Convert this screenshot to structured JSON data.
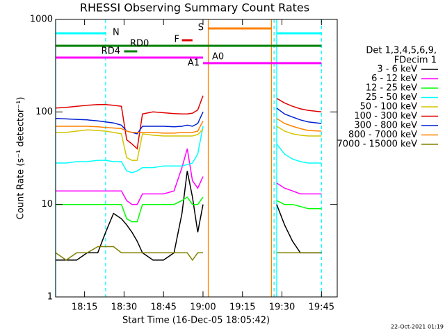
{
  "chart_data": {
    "type": "line",
    "title": "RHESSI Observing Summary Count Rates",
    "x_label": "Start Time (16-Dec-05 18:05:42)",
    "y_label": "Count Rate (s⁻¹ detector⁻¹)",
    "footer": "22-Oct-2021 01:19",
    "legend_title": [
      "Det 1,3,4,5,6,9,",
      "FDecim 1"
    ],
    "log_y": true,
    "xlim": [
      "18:04",
      "19:51"
    ],
    "xticks": [
      "18:15",
      "18:30",
      "18:45",
      "19:00",
      "19:15",
      "19:30",
      "19:45"
    ],
    "ylim": [
      1,
      1000
    ],
    "yticks": [
      1,
      10,
      100,
      1000
    ],
    "x": [
      "18:04",
      "18:08",
      "18:12",
      "18:16",
      "18:20",
      "18:23",
      "18:26",
      "18:29",
      "18:31",
      "18:33",
      "18:35",
      "18:37",
      "18:41",
      "18:45",
      "18:49",
      "18:52",
      "18:54",
      "18:56",
      "18:58",
      "19:00",
      "19:10",
      "19:28",
      "19:31",
      "19:34",
      "19:37",
      "19:40",
      "19:45"
    ],
    "series": [
      {
        "name": "3 - 6 keV",
        "color": "#000000",
        "values": [
          2.5,
          2.5,
          2.5,
          3,
          3,
          5,
          8,
          7,
          6,
          5,
          4,
          3,
          2.5,
          2.5,
          3,
          8,
          23,
          12,
          5,
          10,
          null,
          10,
          6,
          4,
          3,
          3,
          3
        ]
      },
      {
        "name": "6 - 12 keV",
        "color": "#ff00ff",
        "values": [
          14,
          14,
          14,
          14,
          14,
          14,
          14,
          14,
          11,
          10,
          10,
          13,
          13,
          13,
          14,
          25,
          40,
          18,
          15,
          20,
          null,
          17,
          15,
          14,
          13,
          13,
          13
        ]
      },
      {
        "name": "12 - 25 keV",
        "color": "#00ff00",
        "values": [
          10,
          10,
          10,
          10,
          10,
          10,
          10,
          10,
          7,
          6.5,
          6.5,
          10,
          10,
          10,
          10,
          11,
          12,
          10,
          10,
          12,
          null,
          11,
          10,
          10,
          9.5,
          9,
          9
        ]
      },
      {
        "name": "25 - 50 keV",
        "color": "#00ffff",
        "values": [
          28,
          28,
          29,
          29,
          30,
          30,
          29,
          29,
          23,
          22,
          23,
          25,
          25,
          26,
          26,
          26,
          27,
          28,
          35,
          70,
          null,
          45,
          35,
          31,
          29,
          28,
          28
        ]
      },
      {
        "name": "50 - 100 keV",
        "color": "#d4c400",
        "values": [
          60,
          60,
          62,
          64,
          63,
          62,
          60,
          58,
          32,
          30,
          30,
          58,
          56,
          55,
          55,
          55,
          55,
          55,
          57,
          65,
          null,
          70,
          62,
          58,
          56,
          55,
          55
        ]
      },
      {
        "name": "100 - 300 keV",
        "color": "#e00000",
        "values": [
          110,
          112,
          115,
          118,
          120,
          120,
          118,
          115,
          50,
          45,
          40,
          95,
          100,
          98,
          96,
          95,
          95,
          97,
          105,
          150,
          null,
          140,
          125,
          115,
          108,
          104,
          100
        ]
      },
      {
        "name": "300 - 800 keV",
        "color": "#0020d0",
        "values": [
          85,
          84,
          83,
          82,
          80,
          78,
          76,
          72,
          62,
          60,
          58,
          70,
          70,
          70,
          69,
          70,
          72,
          70,
          75,
          100,
          null,
          110,
          95,
          88,
          82,
          78,
          75
        ]
      },
      {
        "name": "800 - 7000 keV",
        "color": "#ff8000",
        "values": [
          70,
          70,
          70,
          70,
          69,
          68,
          67,
          66,
          62,
          60,
          60,
          60,
          60,
          59,
          59,
          60,
          60,
          60,
          62,
          80,
          null,
          85,
          75,
          70,
          66,
          63,
          62
        ]
      },
      {
        "name": "7000 - 15000 keV",
        "color": "#808000",
        "values": [
          3,
          2.5,
          3,
          3,
          3.5,
          3.5,
          3.5,
          3,
          3,
          3,
          3,
          3,
          3,
          3,
          3,
          3,
          3,
          2.5,
          3,
          3,
          null,
          3,
          3,
          3,
          3,
          3,
          3
        ]
      }
    ],
    "flags": [
      {
        "label": "N",
        "color": "#00ffff",
        "start": "18:04",
        "end": "18:23"
      },
      {
        "label": "RD0",
        "color": "#008000",
        "start": "18:04",
        "end": "19:45"
      },
      {
        "label": "RD4",
        "color": "#008000",
        "start": "18:30",
        "end": "18:35"
      },
      {
        "label": "F",
        "color": "#e00000",
        "start": "18:52",
        "end": "18:56"
      },
      {
        "label": "S",
        "color": "#ff8000",
        "start": "19:02",
        "end": "19:26"
      },
      {
        "label": "A0",
        "color": "#ff00ff",
        "start": "18:04",
        "end": "19:00"
      },
      {
        "label": "A1",
        "color": "#ff00ff",
        "start": "19:00",
        "end": "19:45"
      }
    ],
    "markers": [
      {
        "time": "18:04",
        "color": "#00ffff",
        "dashed": false
      },
      {
        "time": "18:23",
        "color": "#00ffff",
        "dashed": true
      },
      {
        "time": "19:02",
        "color": "#ff8000",
        "dashed": false
      },
      {
        "time": "19:26",
        "color": "#ff8000",
        "dashed": false
      },
      {
        "time": "19:27",
        "color": "#00ffff",
        "dashed": true
      },
      {
        "time": "19:28",
        "color": "#00ffff",
        "dashed": false
      },
      {
        "time": "19:45",
        "color": "#00ffff",
        "dashed": true
      }
    ]
  }
}
